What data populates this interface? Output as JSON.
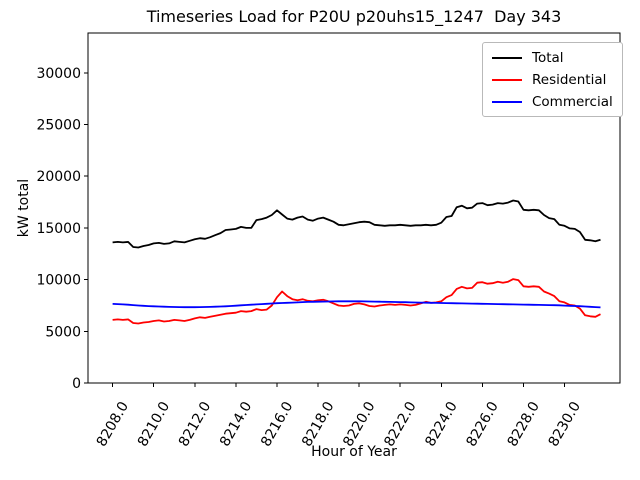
{
  "figure": {
    "title": "Timeseries Load for P20U p20uhs15_1247  Day 343"
  },
  "chart_data": {
    "type": "line",
    "title": "Timeseries Load for P20U p20uhs15_1247  Day 343",
    "xlabel": "Hour of Year",
    "ylabel": "kW total",
    "grid": false,
    "legend_position": "upper right",
    "xlim": [
      8206.8,
      8232.7
    ],
    "ylim": [
      0,
      33850
    ],
    "x_tick_values": [
      8208,
      8210,
      8212,
      8214,
      8216,
      8218,
      8220,
      8222,
      8224,
      8226,
      8228,
      8230
    ],
    "x_tick_labels": [
      "8208.0",
      "8210.0",
      "8212.0",
      "8214.0",
      "8216.0",
      "8218.0",
      "8220.0",
      "8222.0",
      "8224.0",
      "8226.0",
      "8228.0",
      "8230.0"
    ],
    "y_tick_values": [
      0,
      5000,
      10000,
      15000,
      20000,
      25000,
      30000
    ],
    "y_tick_labels": [
      "0",
      "5000",
      "10000",
      "15000",
      "20000",
      "25000",
      "30000"
    ],
    "x_start": 8208.0,
    "x_step": 0.25,
    "series": [
      {
        "name": "Total",
        "color": "#000000",
        "values": [
          13600,
          13650,
          13600,
          13650,
          13150,
          13100,
          13250,
          13350,
          13500,
          13550,
          13450,
          13500,
          13700,
          13650,
          13600,
          13750,
          13900,
          14000,
          13950,
          14100,
          14300,
          14500,
          14800,
          14850,
          14900,
          15100,
          15000,
          15000,
          15750,
          15850,
          16000,
          16250,
          16700,
          16300,
          15900,
          15800,
          16000,
          16100,
          15800,
          15700,
          15900,
          16000,
          15800,
          15600,
          15300,
          15250,
          15350,
          15450,
          15550,
          15600,
          15550,
          15300,
          15250,
          15200,
          15250,
          15250,
          15300,
          15250,
          15200,
          15250,
          15250,
          15300,
          15250,
          15300,
          15500,
          16050,
          16150,
          17000,
          17150,
          16900,
          16950,
          17350,
          17400,
          17200,
          17250,
          17400,
          17350,
          17450,
          17650,
          17550,
          16750,
          16700,
          16750,
          16700,
          16250,
          15950,
          15850,
          15300,
          15200,
          14950,
          14900,
          14600,
          13850,
          13800,
          13700,
          13850
        ]
      },
      {
        "name": "Residential",
        "color": "#ff0000",
        "values": [
          6100,
          6150,
          6100,
          6150,
          5800,
          5750,
          5850,
          5900,
          6000,
          6050,
          5950,
          6000,
          6100,
          6050,
          6000,
          6100,
          6250,
          6350,
          6300,
          6400,
          6500,
          6600,
          6700,
          6750,
          6800,
          6950,
          6900,
          6950,
          7150,
          7050,
          7100,
          7500,
          8300,
          8850,
          8400,
          8100,
          8000,
          8100,
          7950,
          7900,
          8000,
          8050,
          7900,
          7700,
          7500,
          7450,
          7500,
          7650,
          7700,
          7600,
          7450,
          7400,
          7500,
          7550,
          7600,
          7550,
          7600,
          7550,
          7500,
          7550,
          7700,
          7850,
          7750,
          7800,
          7900,
          8300,
          8500,
          9100,
          9300,
          9150,
          9200,
          9700,
          9750,
          9600,
          9650,
          9800,
          9700,
          9800,
          10050,
          9950,
          9350,
          9300,
          9350,
          9300,
          8850,
          8650,
          8400,
          7900,
          7800,
          7550,
          7500,
          7200,
          6550,
          6450,
          6400,
          6650
        ]
      },
      {
        "name": "Commercial",
        "color": "#0000ff",
        "values": [
          7650,
          7630,
          7600,
          7570,
          7530,
          7500,
          7470,
          7440,
          7420,
          7400,
          7380,
          7360,
          7350,
          7340,
          7330,
          7330,
          7330,
          7340,
          7350,
          7360,
          7380,
          7400,
          7420,
          7450,
          7480,
          7510,
          7540,
          7570,
          7600,
          7630,
          7660,
          7690,
          7720,
          7740,
          7760,
          7780,
          7800,
          7820,
          7840,
          7850,
          7860,
          7870,
          7880,
          7890,
          7900,
          7900,
          7900,
          7900,
          7900,
          7890,
          7880,
          7870,
          7860,
          7850,
          7840,
          7830,
          7820,
          7810,
          7800,
          7790,
          7780,
          7770,
          7760,
          7750,
          7740,
          7730,
          7720,
          7710,
          7700,
          7690,
          7680,
          7670,
          7660,
          7650,
          7640,
          7630,
          7620,
          7610,
          7600,
          7590,
          7580,
          7570,
          7560,
          7550,
          7540,
          7530,
          7520,
          7510,
          7490,
          7470,
          7450,
          7430,
          7400,
          7370,
          7340,
          7310
        ]
      }
    ]
  }
}
